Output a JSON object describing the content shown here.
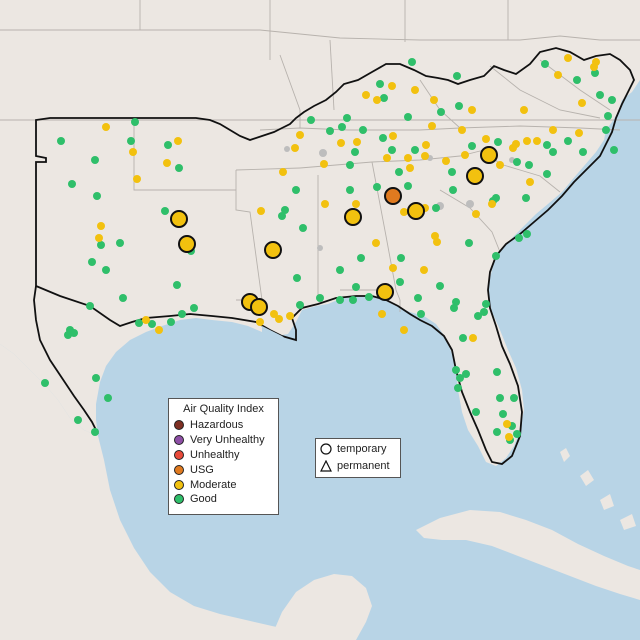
{
  "legend": {
    "title": "Air Quality Index",
    "categories": [
      {
        "label": "Hazardous",
        "color": "#7e2f23"
      },
      {
        "label": "Very Unhealthy",
        "color": "#8e4fa6"
      },
      {
        "label": "Unhealthy",
        "color": "#e84a3a"
      },
      {
        "label": "USG",
        "color": "#e07a1f"
      },
      {
        "label": "Moderate",
        "color": "#f2c10f"
      },
      {
        "label": "Good",
        "color": "#2fbf6a"
      }
    ]
  },
  "marker_legend": {
    "temporary": "temporary",
    "permanent": "permanent"
  },
  "colors": {
    "ocean": "#b8d4e6",
    "land": "#ece7e2",
    "no_data": "#bdbdbd"
  }
}
